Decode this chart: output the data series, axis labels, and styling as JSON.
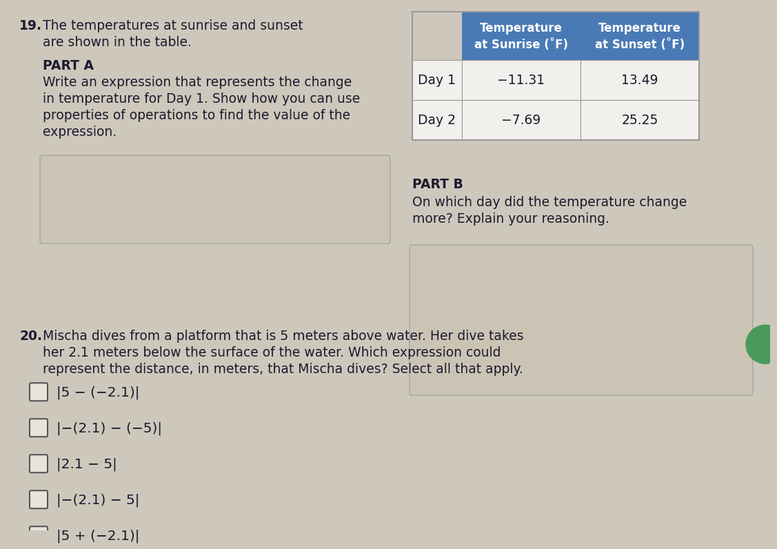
{
  "bg_color": "#cec8bc",
  "title_number_19": "19.",
  "q19_line1": "The temperatures at sunrise and sunset",
  "q19_line2": "   are shown in the table.",
  "part_a_label": "PART A",
  "part_a_body": "Write an expression that represents the change\nin temperature for Day 1. Show how you can use\nproperties of operations to find the value of the\nexpression.",
  "part_b_label": "PART B",
  "part_b_body": "On which day did the temperature change\nmore? Explain your reasoning.",
  "table_header_col1": "Temperature\nat Sunrise (˚F)",
  "table_header_col2": "Temperature\nat Sunset (˚F)",
  "table_header_bg": "#4a7ab5",
  "table_header_fg": "#ffffff",
  "table_rows": [
    [
      "Day 1",
      "−11.31",
      "13.49"
    ],
    [
      "Day 2",
      "−7.69",
      "25.25"
    ]
  ],
  "table_cell_bg": "#f2f0ec",
  "table_border": "#999999",
  "title_number_20": "20.",
  "q20_line1": "Mischa dives from a platform that is 5 meters above water. Her dive takes",
  "q20_line2": "   her 2.1 meters below the surface of the water. Which expression could",
  "q20_line3": "   represent the distance, in meters, that Mischa dives? Select all that apply.",
  "q20_options": [
    "|5 − (−2.1)|",
    "|−(2.1) − (−5)|",
    "|2.1 − 5|",
    "|−(2.1) − 5|",
    "|5 + (−2.1)|"
  ],
  "answer_box_color": "#cbc4b4",
  "answer_box_edge": "#aaaaaa"
}
